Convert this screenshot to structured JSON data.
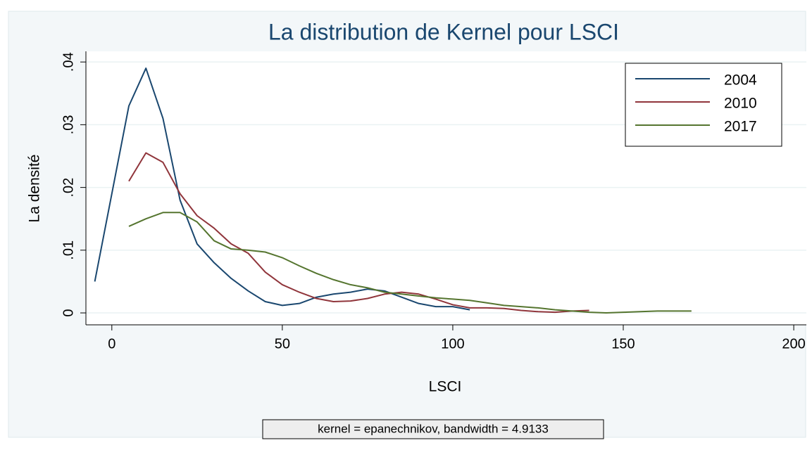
{
  "chart_data": {
    "type": "line",
    "title": "La distribution de Kernel pour LSCI",
    "xlabel": "LSCI",
    "ylabel": "La densité",
    "note": "kernel = epanechnikov, bandwidth = 4.9133",
    "x": [
      -5,
      0,
      5,
      10,
      15,
      20,
      25,
      30,
      35,
      40,
      45,
      50,
      55,
      60,
      65,
      70,
      75,
      80,
      85,
      90,
      95,
      100,
      105,
      110,
      115,
      120,
      125,
      130,
      135,
      140,
      145,
      150,
      155,
      160,
      165,
      170
    ],
    "series": [
      {
        "name": "2004",
        "color": "#1a476f",
        "values": [
          0.005,
          0.019,
          0.033,
          0.039,
          0.031,
          0.018,
          0.011,
          0.008,
          0.0055,
          0.0035,
          0.0018,
          0.0012,
          0.0015,
          0.0025,
          0.003,
          0.0033,
          0.0038,
          0.0035,
          0.0025,
          0.0015,
          0.001,
          0.001,
          0.0005,
          null,
          null,
          null,
          null,
          null,
          null,
          null,
          null,
          null,
          null,
          null,
          null,
          null
        ]
      },
      {
        "name": "2010",
        "color": "#90353b",
        "values": [
          null,
          null,
          0.021,
          0.0255,
          0.024,
          0.019,
          0.0155,
          0.0135,
          0.011,
          0.0095,
          0.0065,
          0.0045,
          0.0033,
          0.0023,
          0.0018,
          0.0019,
          0.0023,
          0.003,
          0.0033,
          0.003,
          0.0022,
          0.0013,
          0.0008,
          0.0008,
          0.0007,
          0.0004,
          0.0002,
          0.0001,
          0.0003,
          0.0004,
          null,
          null,
          null,
          null,
          null,
          null
        ]
      },
      {
        "name": "2017",
        "color": "#55752f",
        "values": [
          null,
          null,
          0.0138,
          0.015,
          0.016,
          0.016,
          0.0145,
          0.0115,
          0.0102,
          0.01,
          0.0097,
          0.0088,
          0.0075,
          0.0063,
          0.0053,
          0.0045,
          0.004,
          0.0033,
          0.003,
          0.0027,
          0.0024,
          0.0022,
          0.002,
          0.0016,
          0.0012,
          0.001,
          0.0008,
          0.0005,
          0.0003,
          0.0001,
          0,
          0.0001,
          0.0002,
          0.0003,
          0.0003,
          0.0003
        ]
      }
    ],
    "xlim": [
      -7.6,
      203.7
    ],
    "ylim": [
      -0.0019,
      0.0417
    ],
    "xticks": [
      0,
      50,
      100,
      150,
      200
    ],
    "yticks": [
      0,
      {
        "value": 0.01,
        "label": ".01"
      },
      {
        "value": 0.02,
        "label": ".02"
      },
      {
        "value": 0.03,
        "label": ".03"
      },
      {
        "value": 0.04,
        "label": ".04"
      }
    ],
    "grid": true,
    "legend": "northeast"
  }
}
